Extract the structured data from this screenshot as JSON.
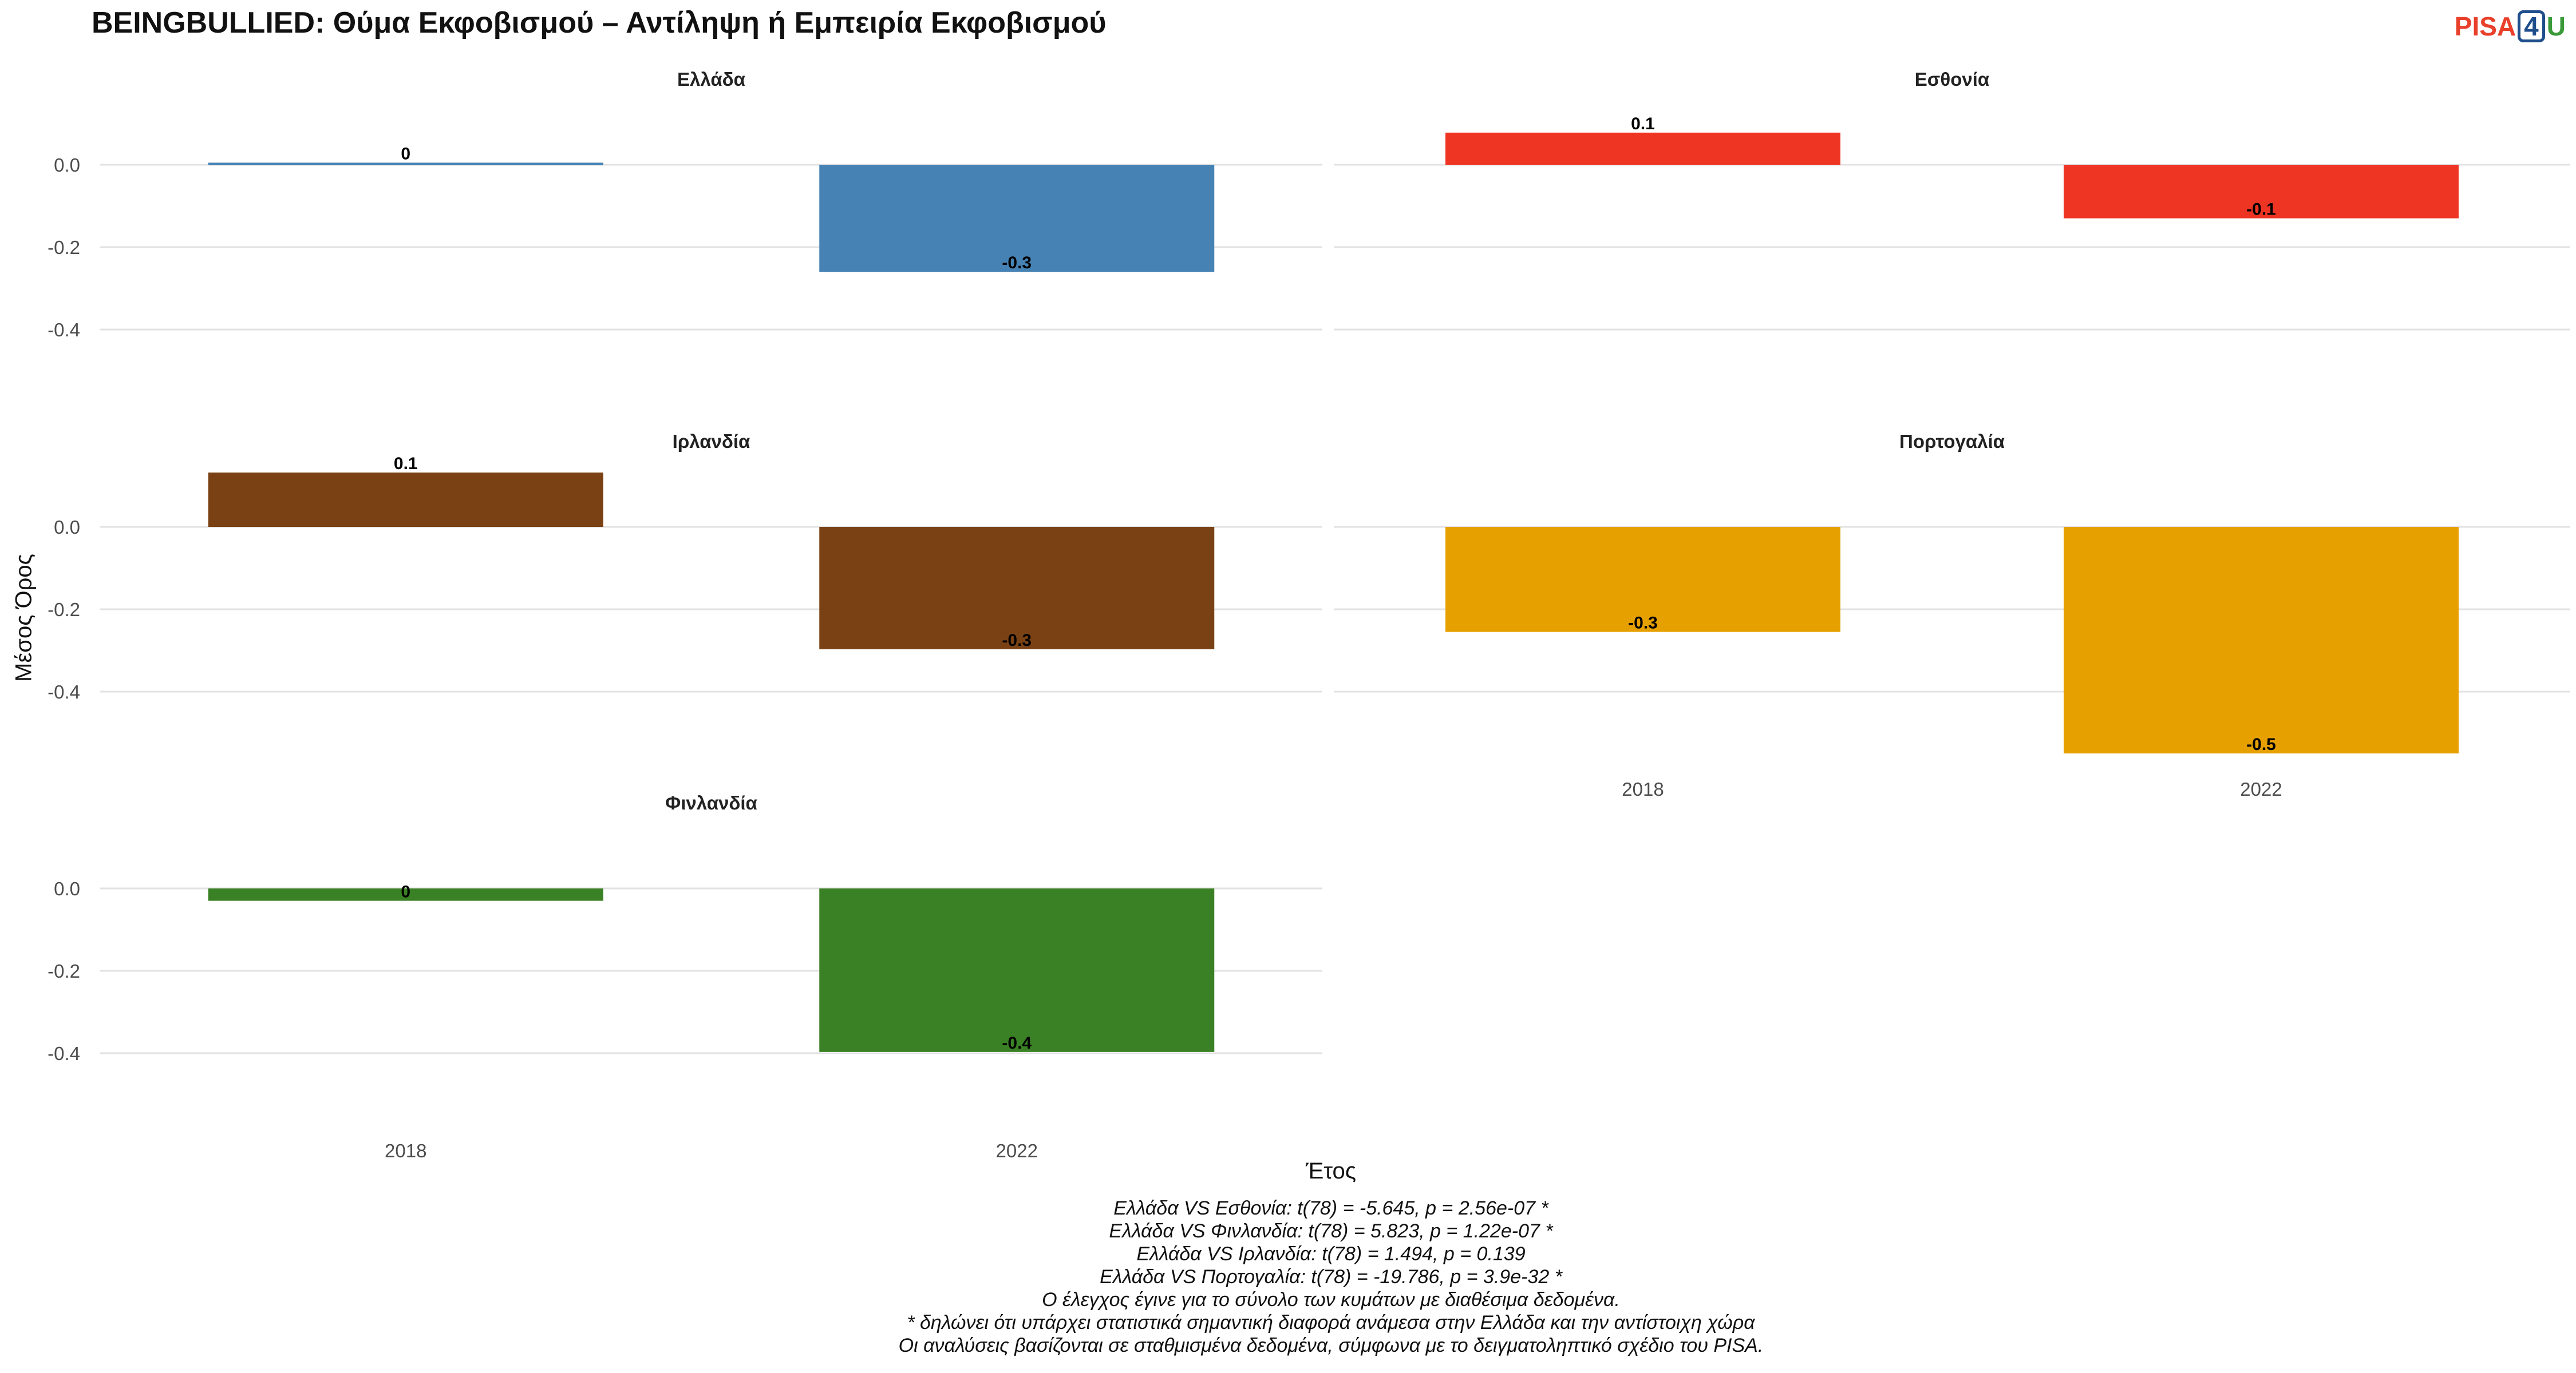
{
  "title": "BEINGBULLIED: Θύμα Εκφοβισμού – Αντίληψη ή Εμπειρία Εκφοβισμού",
  "logo": {
    "part1": "PISA",
    "part2": "4",
    "part3": "U"
  },
  "chart_data": {
    "type": "bar",
    "xlabel": "Έτος",
    "ylabel": "Μέσος Όρος",
    "categories": [
      "2018",
      "2022"
    ],
    "y_ticks": [
      "0.0",
      "-0.2",
      "-0.4"
    ],
    "ylim": [
      -0.55,
      0.12
    ],
    "panels": [
      {
        "name": "Ελλάδα",
        "color": "#4682b4",
        "values": [
          0.005,
          -0.26
        ],
        "labels": [
          "0",
          "-0.3"
        ]
      },
      {
        "name": "Εσθονία",
        "color": "#ee3524",
        "values": [
          0.078,
          -0.13
        ],
        "labels": [
          "0.1",
          "-0.1"
        ]
      },
      {
        "name": "Ιρλανδία",
        "color": "#7a4214",
        "values": [
          0.132,
          -0.297
        ],
        "labels": [
          "0.1",
          "-0.3"
        ]
      },
      {
        "name": "Πορτογαλία",
        "color": "#e6a000",
        "values": [
          -0.255,
          -0.55
        ],
        "labels": [
          "-0.3",
          "-0.5"
        ]
      },
      {
        "name": "Φινλανδία",
        "color": "#3a8024",
        "values": [
          -0.03,
          -0.397
        ],
        "labels": [
          "0",
          "-0.4"
        ]
      }
    ]
  },
  "caption": [
    "Ελλάδα VS Εσθονία: t(78) = -5.645, p = 2.56e-07 *",
    "Ελλάδα VS Φινλανδία: t(78) = 5.823, p = 1.22e-07 *",
    "Ελλάδα VS Ιρλανδία: t(78) = 1.494, p = 0.139",
    "Ελλάδα VS Πορτογαλία: t(78) = -19.786, p = 3.9e-32 *",
    "Ο έλεγχος έγινε για το σύνολο των κυμάτων με διαθέσιμα δεδομένα.",
    "* δηλώνει ότι υπάρχει στατιστικά σημαντική διαφορά ανάμεσα στην Ελλάδα και την αντίστοιχη χώρα",
    "Οι αναλύσεις βασίζονται σε σταθμισμένα δεδομένα, σύμφωνα με το δειγματοληπτικό σχέδιο του PISA."
  ]
}
